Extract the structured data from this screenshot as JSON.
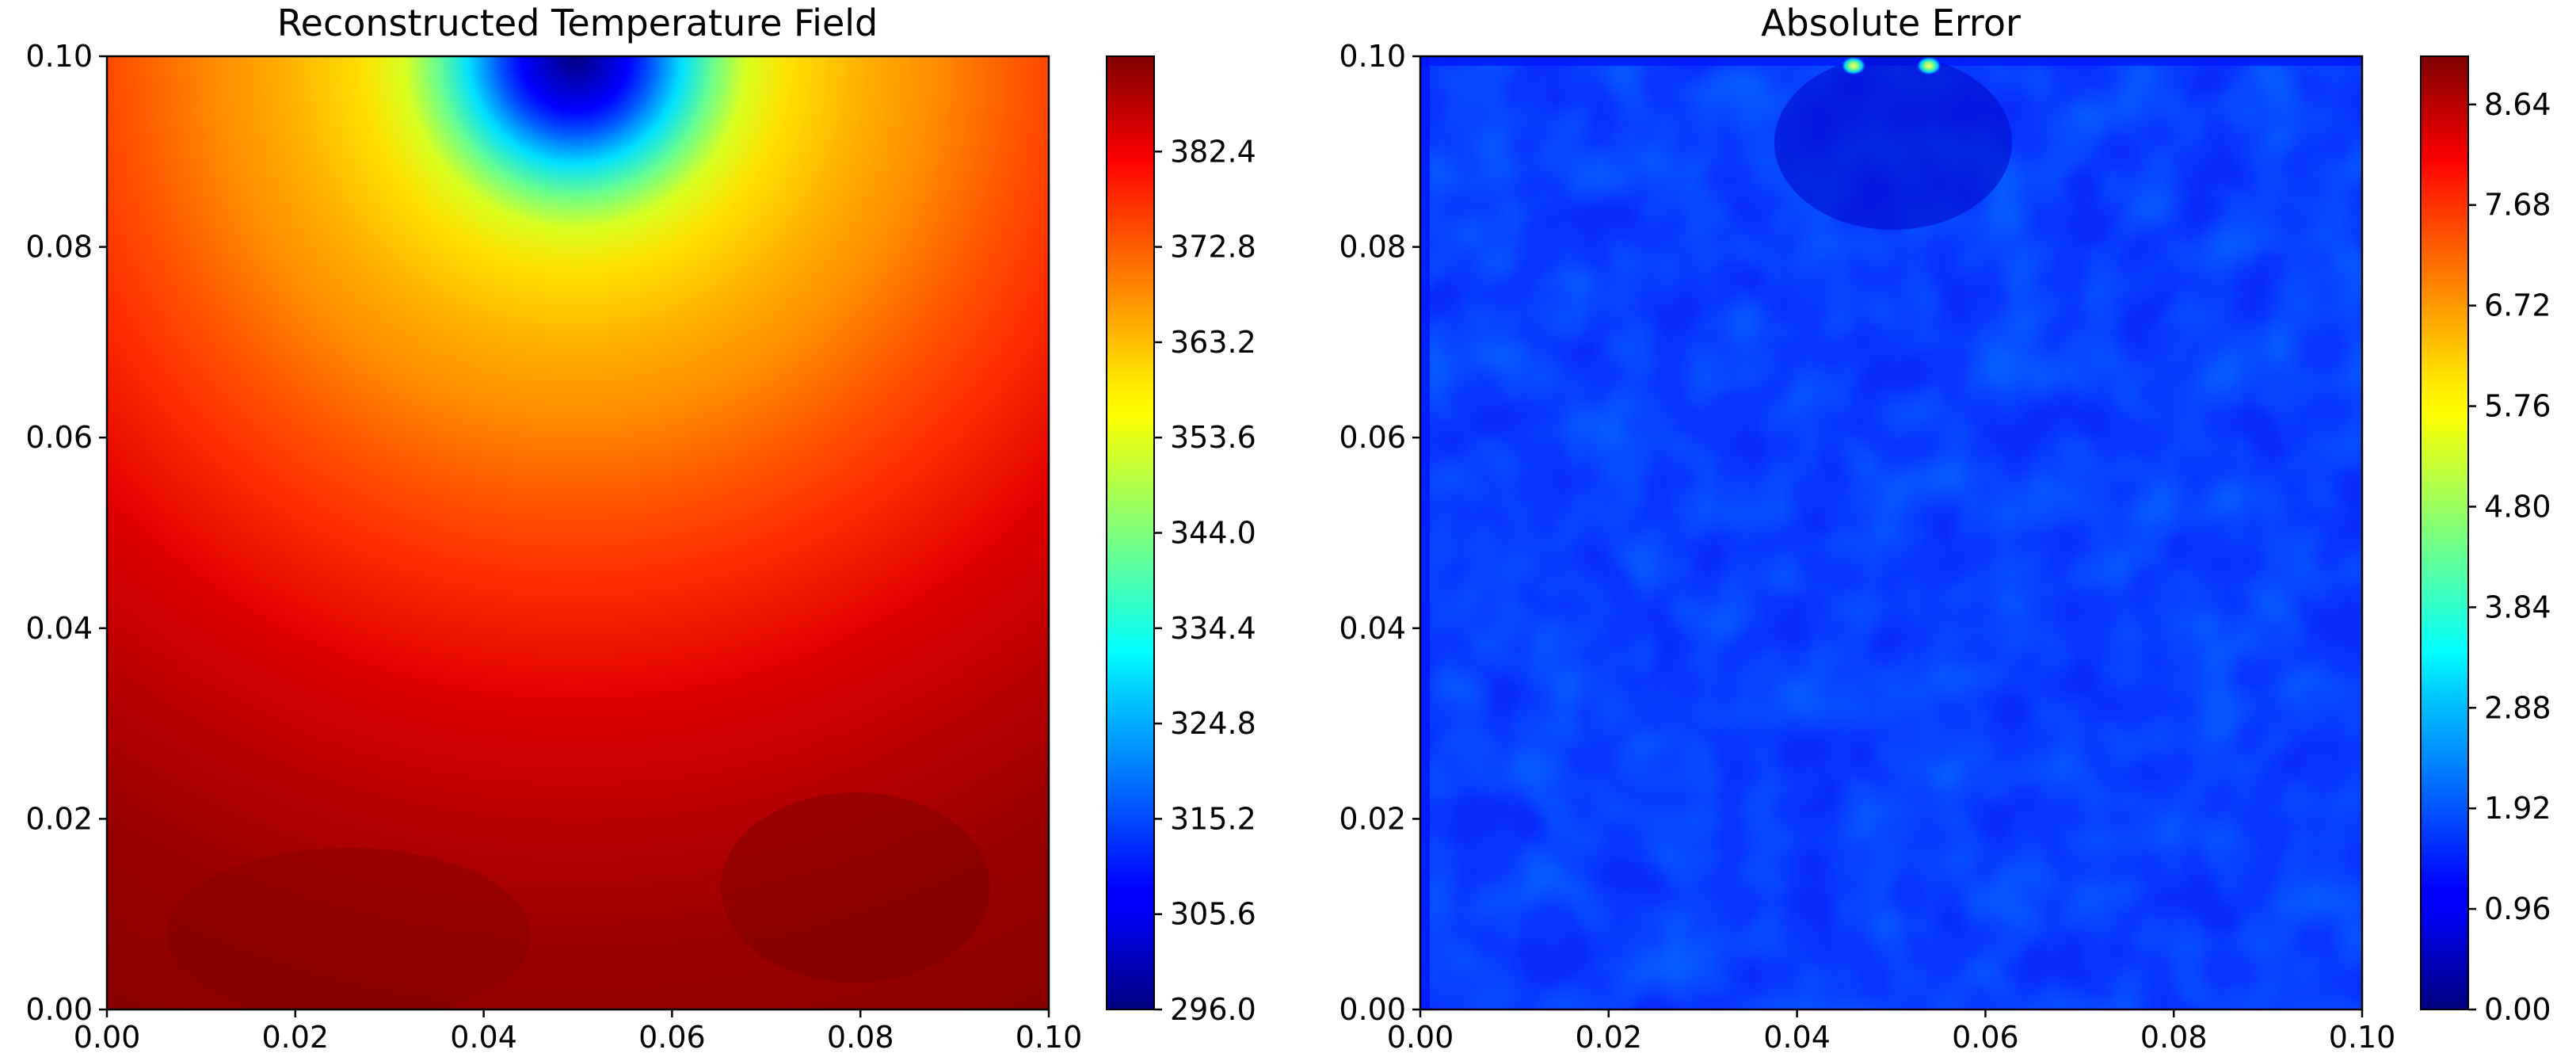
{
  "chart_data": [
    {
      "type": "heatmap",
      "title": "Reconstructed Temperature Field",
      "xlabel": "",
      "ylabel": "",
      "xlim": [
        0.0,
        0.1
      ],
      "ylim": [
        0.0,
        0.1
      ],
      "xticks": [
        "0.00",
        "0.02",
        "0.04",
        "0.06",
        "0.08",
        "0.10"
      ],
      "yticks": [
        "0.00",
        "0.02",
        "0.04",
        "0.06",
        "0.08",
        "0.10"
      ],
      "colormap": "jet",
      "colorbar": {
        "range": [
          296.0,
          392.0
        ],
        "ticks": [
          "296.0",
          "305.6",
          "315.2",
          "324.8",
          "334.4",
          "344.0",
          "353.6",
          "363.2",
          "372.8",
          "382.4"
        ]
      },
      "field": {
        "description": "cold spot centered at top edge",
        "cold_spot_center": [
          0.05,
          0.1
        ],
        "min_value": 296.0,
        "max_value": 392.0
      },
      "grid": false
    },
    {
      "type": "heatmap",
      "title": "Absolute Error",
      "xlabel": "",
      "ylabel": "",
      "xlim": [
        0.0,
        0.1
      ],
      "ylim": [
        0.0,
        0.1
      ],
      "xticks": [
        "0.00",
        "0.02",
        "0.04",
        "0.06",
        "0.08",
        "0.10"
      ],
      "yticks": [
        "0.00",
        "0.02",
        "0.04",
        "0.06",
        "0.08",
        "0.10"
      ],
      "colormap": "jet",
      "colorbar": {
        "range": [
          0.0,
          9.1
        ],
        "ticks": [
          "0.00",
          "0.96",
          "1.92",
          "2.88",
          "3.84",
          "4.80",
          "5.76",
          "6.72",
          "7.68",
          "8.64"
        ]
      },
      "field": {
        "typical_value": 1.5,
        "hot_spots": [
          {
            "x": 0.046,
            "y": 0.099,
            "value": 5.0
          },
          {
            "x": 0.054,
            "y": 0.099,
            "value": 5.0
          }
        ]
      },
      "grid": false
    }
  ]
}
